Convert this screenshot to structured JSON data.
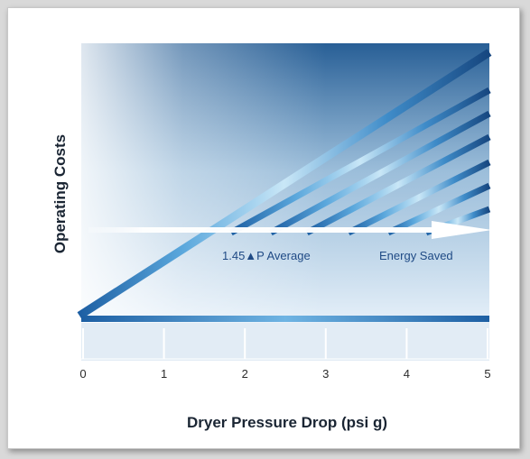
{
  "chart_data": {
    "type": "line",
    "title": "",
    "xlabel": "Dryer Pressure Drop (psi g)",
    "ylabel": "Operating Costs",
    "xlim": [
      0,
      5
    ],
    "x_ticks": [
      "0",
      "1",
      "2",
      "3",
      "4",
      "5"
    ],
    "grid": false,
    "annotations": {
      "average": "1.45▲P Average",
      "saved": "Energy Saved"
    },
    "colors": {
      "line_dark": "#1d5fa3",
      "line_light": "#9fd0ee",
      "bg_top": "#1c5690",
      "bg_bottom": "#eaf3fb",
      "arrow": "#ffffff"
    }
  }
}
